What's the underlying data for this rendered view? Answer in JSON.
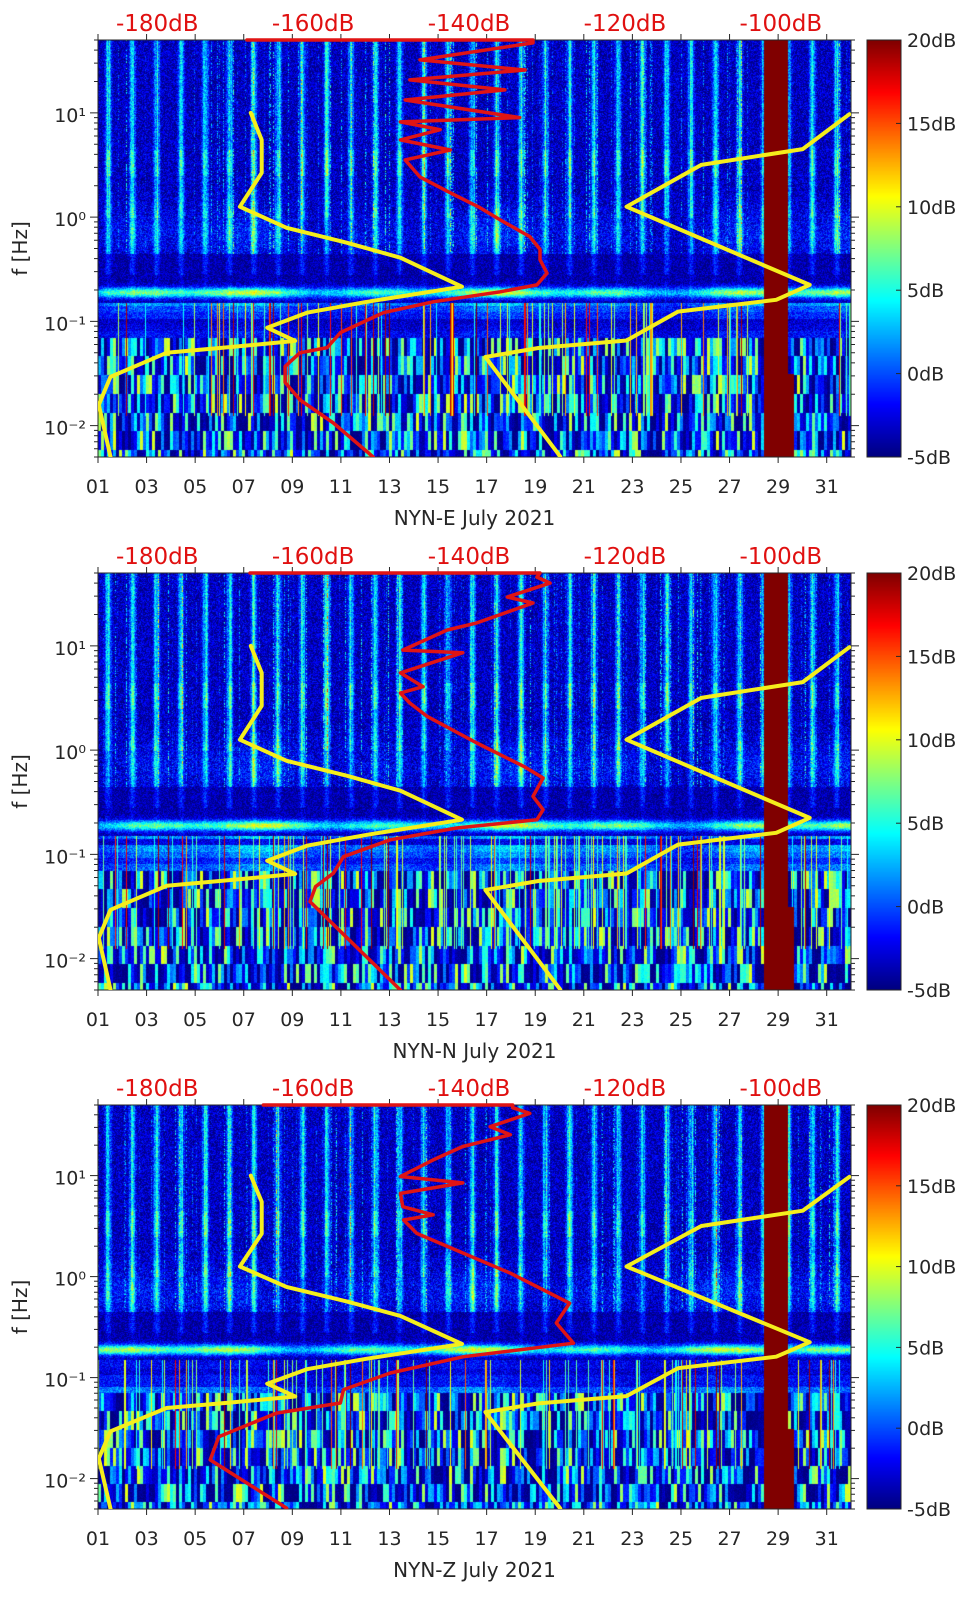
{
  "colors": {
    "nlnm": "#f5ee1c",
    "nhnm": "#f5ee1c",
    "psd": "#e01414",
    "top_labels": "#e01010",
    "axis": "#262626"
  },
  "colorbar": {
    "range": [
      -5,
      20
    ],
    "ticks": [
      20,
      15,
      10,
      5,
      0,
      -5
    ],
    "labels": [
      "20dB",
      "15dB",
      "10dB",
      "5dB",
      "0dB",
      "-5dB"
    ],
    "colormap": "jet"
  },
  "chart_data": [
    {
      "type": "heatmap",
      "title": "",
      "xlabel": "NYN-E July 2021",
      "ylabel": "f [Hz]",
      "xlim": [
        1,
        32
      ],
      "ylim": [
        0.005,
        50
      ],
      "yscale": "log",
      "xticks": [
        1,
        3,
        5,
        7,
        9,
        11,
        13,
        15,
        17,
        19,
        21,
        23,
        25,
        27,
        29,
        31
      ],
      "xtick_labels": [
        "01",
        "03",
        "05",
        "07",
        "09",
        "11",
        "13",
        "15",
        "17",
        "19",
        "21",
        "23",
        "25",
        "27",
        "29",
        "31"
      ],
      "yticks": [
        10,
        1,
        0.1,
        0.01
      ],
      "ytick_labels": [
        "10¹",
        "10⁰",
        "10⁻¹",
        "10⁻²"
      ],
      "top_axis": {
        "xlim_dB": [
          -187.6,
          -91.0
        ],
        "values": [
          -180,
          -160,
          -140,
          -120,
          -100
        ],
        "labels": [
          "-180dB",
          "-160dB",
          "-140dB",
          "-120dB",
          "-100dB"
        ]
      },
      "saturated_interval_days": [
        28.4,
        29.4
      ],
      "colorbar_range": [
        -5,
        20
      ],
      "seed": 11,
      "curves": {
        "nlnm": [
          [
            -168.0,
            10
          ],
          [
            -166.6,
            5.5
          ],
          [
            -166.6,
            2.66
          ],
          [
            -169.4,
            1.26
          ],
          [
            -163.4,
            0.79
          ],
          [
            -155.7,
            0.568
          ],
          [
            -148.8,
            0.408
          ],
          [
            -140.9,
            0.215
          ],
          [
            -153.1,
            0.154
          ],
          [
            -160.8,
            0.121
          ],
          [
            -165.9,
            0.087
          ],
          [
            -162.3,
            0.065
          ],
          [
            -170.2,
            0.057
          ],
          [
            -178.8,
            0.05
          ],
          [
            -186.0,
            0.0294
          ],
          [
            -187.5,
            0.0158
          ],
          [
            -186.0,
            0.00503
          ]
        ],
        "nhnm": [
          [
            -91.2,
            9.7
          ],
          [
            -97.2,
            4.49
          ],
          [
            -110.2,
            3.17
          ],
          [
            -119.8,
            1.26
          ],
          [
            -96.3,
            0.224
          ],
          [
            -100.6,
            0.161
          ],
          [
            -113.2,
            0.124
          ],
          [
            -119.8,
            0.0656
          ],
          [
            -131.1,
            0.0555
          ],
          [
            -137.9,
            0.0455
          ],
          [
            -128.3,
            0.00507
          ]
        ],
        "psd": [
          [
            -168.5,
            50
          ],
          [
            -131.8,
            50
          ],
          [
            -131.8,
            46.9
          ],
          [
            -146.3,
            32.2
          ],
          [
            -132.8,
            25.8
          ],
          [
            -147.6,
            20.7
          ],
          [
            -135.4,
            16.6
          ],
          [
            -148.2,
            13.3
          ],
          [
            -133.5,
            9.0
          ],
          [
            -148.8,
            8.2
          ],
          [
            -143.7,
            6.9
          ],
          [
            -148.8,
            5.5
          ],
          [
            -142.4,
            4.4
          ],
          [
            -148.2,
            3.54
          ],
          [
            -146.3,
            2.43
          ],
          [
            -142.4,
            1.71
          ],
          [
            -138.6,
            1.23
          ],
          [
            -136.0,
            0.94
          ],
          [
            -132.2,
            0.65
          ],
          [
            -130.9,
            0.49
          ],
          [
            -130.9,
            0.39
          ],
          [
            -130.0,
            0.29
          ],
          [
            -131.3,
            0.224
          ],
          [
            -136.0,
            0.192
          ],
          [
            -138.6,
            0.18
          ],
          [
            -144.6,
            0.154
          ],
          [
            -151.0,
            0.121
          ],
          [
            -156.5,
            0.078
          ],
          [
            -158.2,
            0.056
          ],
          [
            -161.7,
            0.05
          ],
          [
            -163.6,
            0.037
          ],
          [
            -163.6,
            0.026
          ],
          [
            -161.7,
            0.0177
          ],
          [
            -157.4,
            0.0106
          ],
          [
            -152.3,
            0.005
          ]
        ]
      }
    },
    {
      "type": "heatmap",
      "title": "",
      "xlabel": "NYN-N July 2021",
      "ylabel": "f [Hz]",
      "xlim": [
        1,
        32
      ],
      "ylim": [
        0.005,
        50
      ],
      "yscale": "log",
      "xticks": [
        1,
        3,
        5,
        7,
        9,
        11,
        13,
        15,
        17,
        19,
        21,
        23,
        25,
        27,
        29,
        31
      ],
      "xtick_labels": [
        "01",
        "03",
        "05",
        "07",
        "09",
        "11",
        "13",
        "15",
        "17",
        "19",
        "21",
        "23",
        "25",
        "27",
        "29",
        "31"
      ],
      "yticks": [
        10,
        1,
        0.1,
        0.01
      ],
      "ytick_labels": [
        "10¹",
        "10⁰",
        "10⁻¹",
        "10⁻²"
      ],
      "top_axis": {
        "xlim_dB": [
          -187.6,
          -91.0
        ],
        "values": [
          -180,
          -160,
          -140,
          -120,
          -100
        ],
        "labels": [
          "-180dB",
          "-160dB",
          "-140dB",
          "-120dB",
          "-100dB"
        ]
      },
      "saturated_interval_days": [
        28.4,
        29.4
      ],
      "colorbar_range": [
        -5,
        20
      ],
      "seed": 23,
      "curves": {
        "nlnm": [
          [
            -168.0,
            10
          ],
          [
            -166.6,
            5.5
          ],
          [
            -166.6,
            2.66
          ],
          [
            -169.4,
            1.26
          ],
          [
            -163.4,
            0.79
          ],
          [
            -155.7,
            0.568
          ],
          [
            -148.8,
            0.408
          ],
          [
            -140.9,
            0.215
          ],
          [
            -153.1,
            0.154
          ],
          [
            -160.8,
            0.121
          ],
          [
            -165.9,
            0.087
          ],
          [
            -162.3,
            0.065
          ],
          [
            -170.2,
            0.057
          ],
          [
            -178.8,
            0.05
          ],
          [
            -186.0,
            0.0294
          ],
          [
            -187.5,
            0.0158
          ],
          [
            -186.0,
            0.00503
          ]
        ],
        "nhnm": [
          [
            -91.2,
            9.7
          ],
          [
            -97.2,
            4.49
          ],
          [
            -110.2,
            3.17
          ],
          [
            -119.8,
            1.26
          ],
          [
            -96.3,
            0.224
          ],
          [
            -100.6,
            0.161
          ],
          [
            -113.2,
            0.124
          ],
          [
            -119.8,
            0.0656
          ],
          [
            -131.1,
            0.0555
          ],
          [
            -137.9,
            0.0455
          ],
          [
            -128.3,
            0.00507
          ]
        ],
        "psd": [
          [
            -168.1,
            50
          ],
          [
            -130.9,
            50
          ],
          [
            -131.3,
            45.7
          ],
          [
            -129.6,
            40
          ],
          [
            -135.1,
            29.4
          ],
          [
            -131.8,
            25.8
          ],
          [
            -139.0,
            16.6
          ],
          [
            -142.8,
            14.2
          ],
          [
            -148.5,
            9.1
          ],
          [
            -140.8,
            8.6
          ],
          [
            -148.8,
            5.5
          ],
          [
            -145.9,
            4.06
          ],
          [
            -148.8,
            3.53
          ],
          [
            -147.6,
            2.83
          ],
          [
            -145.4,
            2.11
          ],
          [
            -139.0,
            1.17
          ],
          [
            -133.0,
            0.7
          ],
          [
            -130.5,
            0.54
          ],
          [
            -131.8,
            0.36
          ],
          [
            -130.5,
            0.268
          ],
          [
            -131.3,
            0.215
          ],
          [
            -141.6,
            0.179
          ],
          [
            -150.1,
            0.138
          ],
          [
            -156.1,
            0.095
          ],
          [
            -157.4,
            0.066
          ],
          [
            -159.7,
            0.049
          ],
          [
            -160.4,
            0.0352
          ],
          [
            -148.8,
            0.005
          ]
        ]
      }
    },
    {
      "type": "heatmap",
      "title": "",
      "xlabel": "NYN-Z July 2021",
      "ylabel": "f [Hz]",
      "xlim": [
        1,
        32
      ],
      "ylim": [
        0.005,
        50
      ],
      "yscale": "log",
      "xticks": [
        1,
        3,
        5,
        7,
        9,
        11,
        13,
        15,
        17,
        19,
        21,
        23,
        25,
        27,
        29,
        31
      ],
      "xtick_labels": [
        "01",
        "03",
        "05",
        "07",
        "09",
        "11",
        "13",
        "15",
        "17",
        "19",
        "21",
        "23",
        "25",
        "27",
        "29",
        "31"
      ],
      "yticks": [
        10,
        1,
        0.1,
        0.01
      ],
      "ytick_labels": [
        "10¹",
        "10⁰",
        "10⁻¹",
        "10⁻²"
      ],
      "top_axis": {
        "xlim_dB": [
          -187.6,
          -91.0
        ],
        "values": [
          -180,
          -160,
          -140,
          -120,
          -100
        ],
        "labels": [
          "-180dB",
          "-160dB",
          "-140dB",
          "-120dB",
          "-100dB"
        ]
      },
      "saturated_interval_days": [
        28.4,
        29.4
      ],
      "colorbar_range": [
        -5,
        20
      ],
      "seed": 37,
      "curves": {
        "nlnm": [
          [
            -168.0,
            10
          ],
          [
            -166.6,
            5.5
          ],
          [
            -166.6,
            2.66
          ],
          [
            -169.4,
            1.26
          ],
          [
            -163.4,
            0.79
          ],
          [
            -155.7,
            0.568
          ],
          [
            -148.8,
            0.408
          ],
          [
            -140.9,
            0.215
          ],
          [
            -153.1,
            0.154
          ],
          [
            -160.8,
            0.121
          ],
          [
            -165.9,
            0.087
          ],
          [
            -162.3,
            0.065
          ],
          [
            -170.2,
            0.057
          ],
          [
            -178.8,
            0.05
          ],
          [
            -186.0,
            0.0294
          ],
          [
            -187.5,
            0.0158
          ],
          [
            -186.0,
            0.00503
          ]
        ],
        "nhnm": [
          [
            -91.2,
            9.7
          ],
          [
            -97.2,
            4.49
          ],
          [
            -110.2,
            3.17
          ],
          [
            -119.8,
            1.26
          ],
          [
            -96.3,
            0.224
          ],
          [
            -100.6,
            0.161
          ],
          [
            -113.2,
            0.124
          ],
          [
            -119.8,
            0.0656
          ],
          [
            -131.1,
            0.0555
          ],
          [
            -137.9,
            0.0455
          ],
          [
            -128.3,
            0.00507
          ]
        ],
        "psd": [
          [
            -166.4,
            50
          ],
          [
            -134.4,
            50
          ],
          [
            -134.4,
            47
          ],
          [
            -132.2,
            41.3
          ],
          [
            -137.3,
            30.5
          ],
          [
            -134.7,
            25.4
          ],
          [
            -140.8,
            19.4
          ],
          [
            -144.6,
            14.3
          ],
          [
            -148.8,
            9.8
          ],
          [
            -140.8,
            8.47
          ],
          [
            -148.8,
            6.67
          ],
          [
            -148.5,
            4.92
          ],
          [
            -144.6,
            4.09
          ],
          [
            -148.4,
            3.63
          ],
          [
            -146.7,
            2.68
          ],
          [
            -134.7,
            1.08
          ],
          [
            -127.1,
            0.545
          ],
          [
            -128.8,
            0.347
          ],
          [
            -126.6,
            0.219
          ],
          [
            -140.7,
            0.161
          ],
          [
            -150.1,
            0.111
          ],
          [
            -156.1,
            0.076
          ],
          [
            -156.5,
            0.056
          ],
          [
            -164.7,
            0.0445
          ],
          [
            -172.1,
            0.026
          ],
          [
            -173.2,
            0.0153
          ],
          [
            -163.4,
            0.0051
          ]
        ]
      }
    }
  ]
}
